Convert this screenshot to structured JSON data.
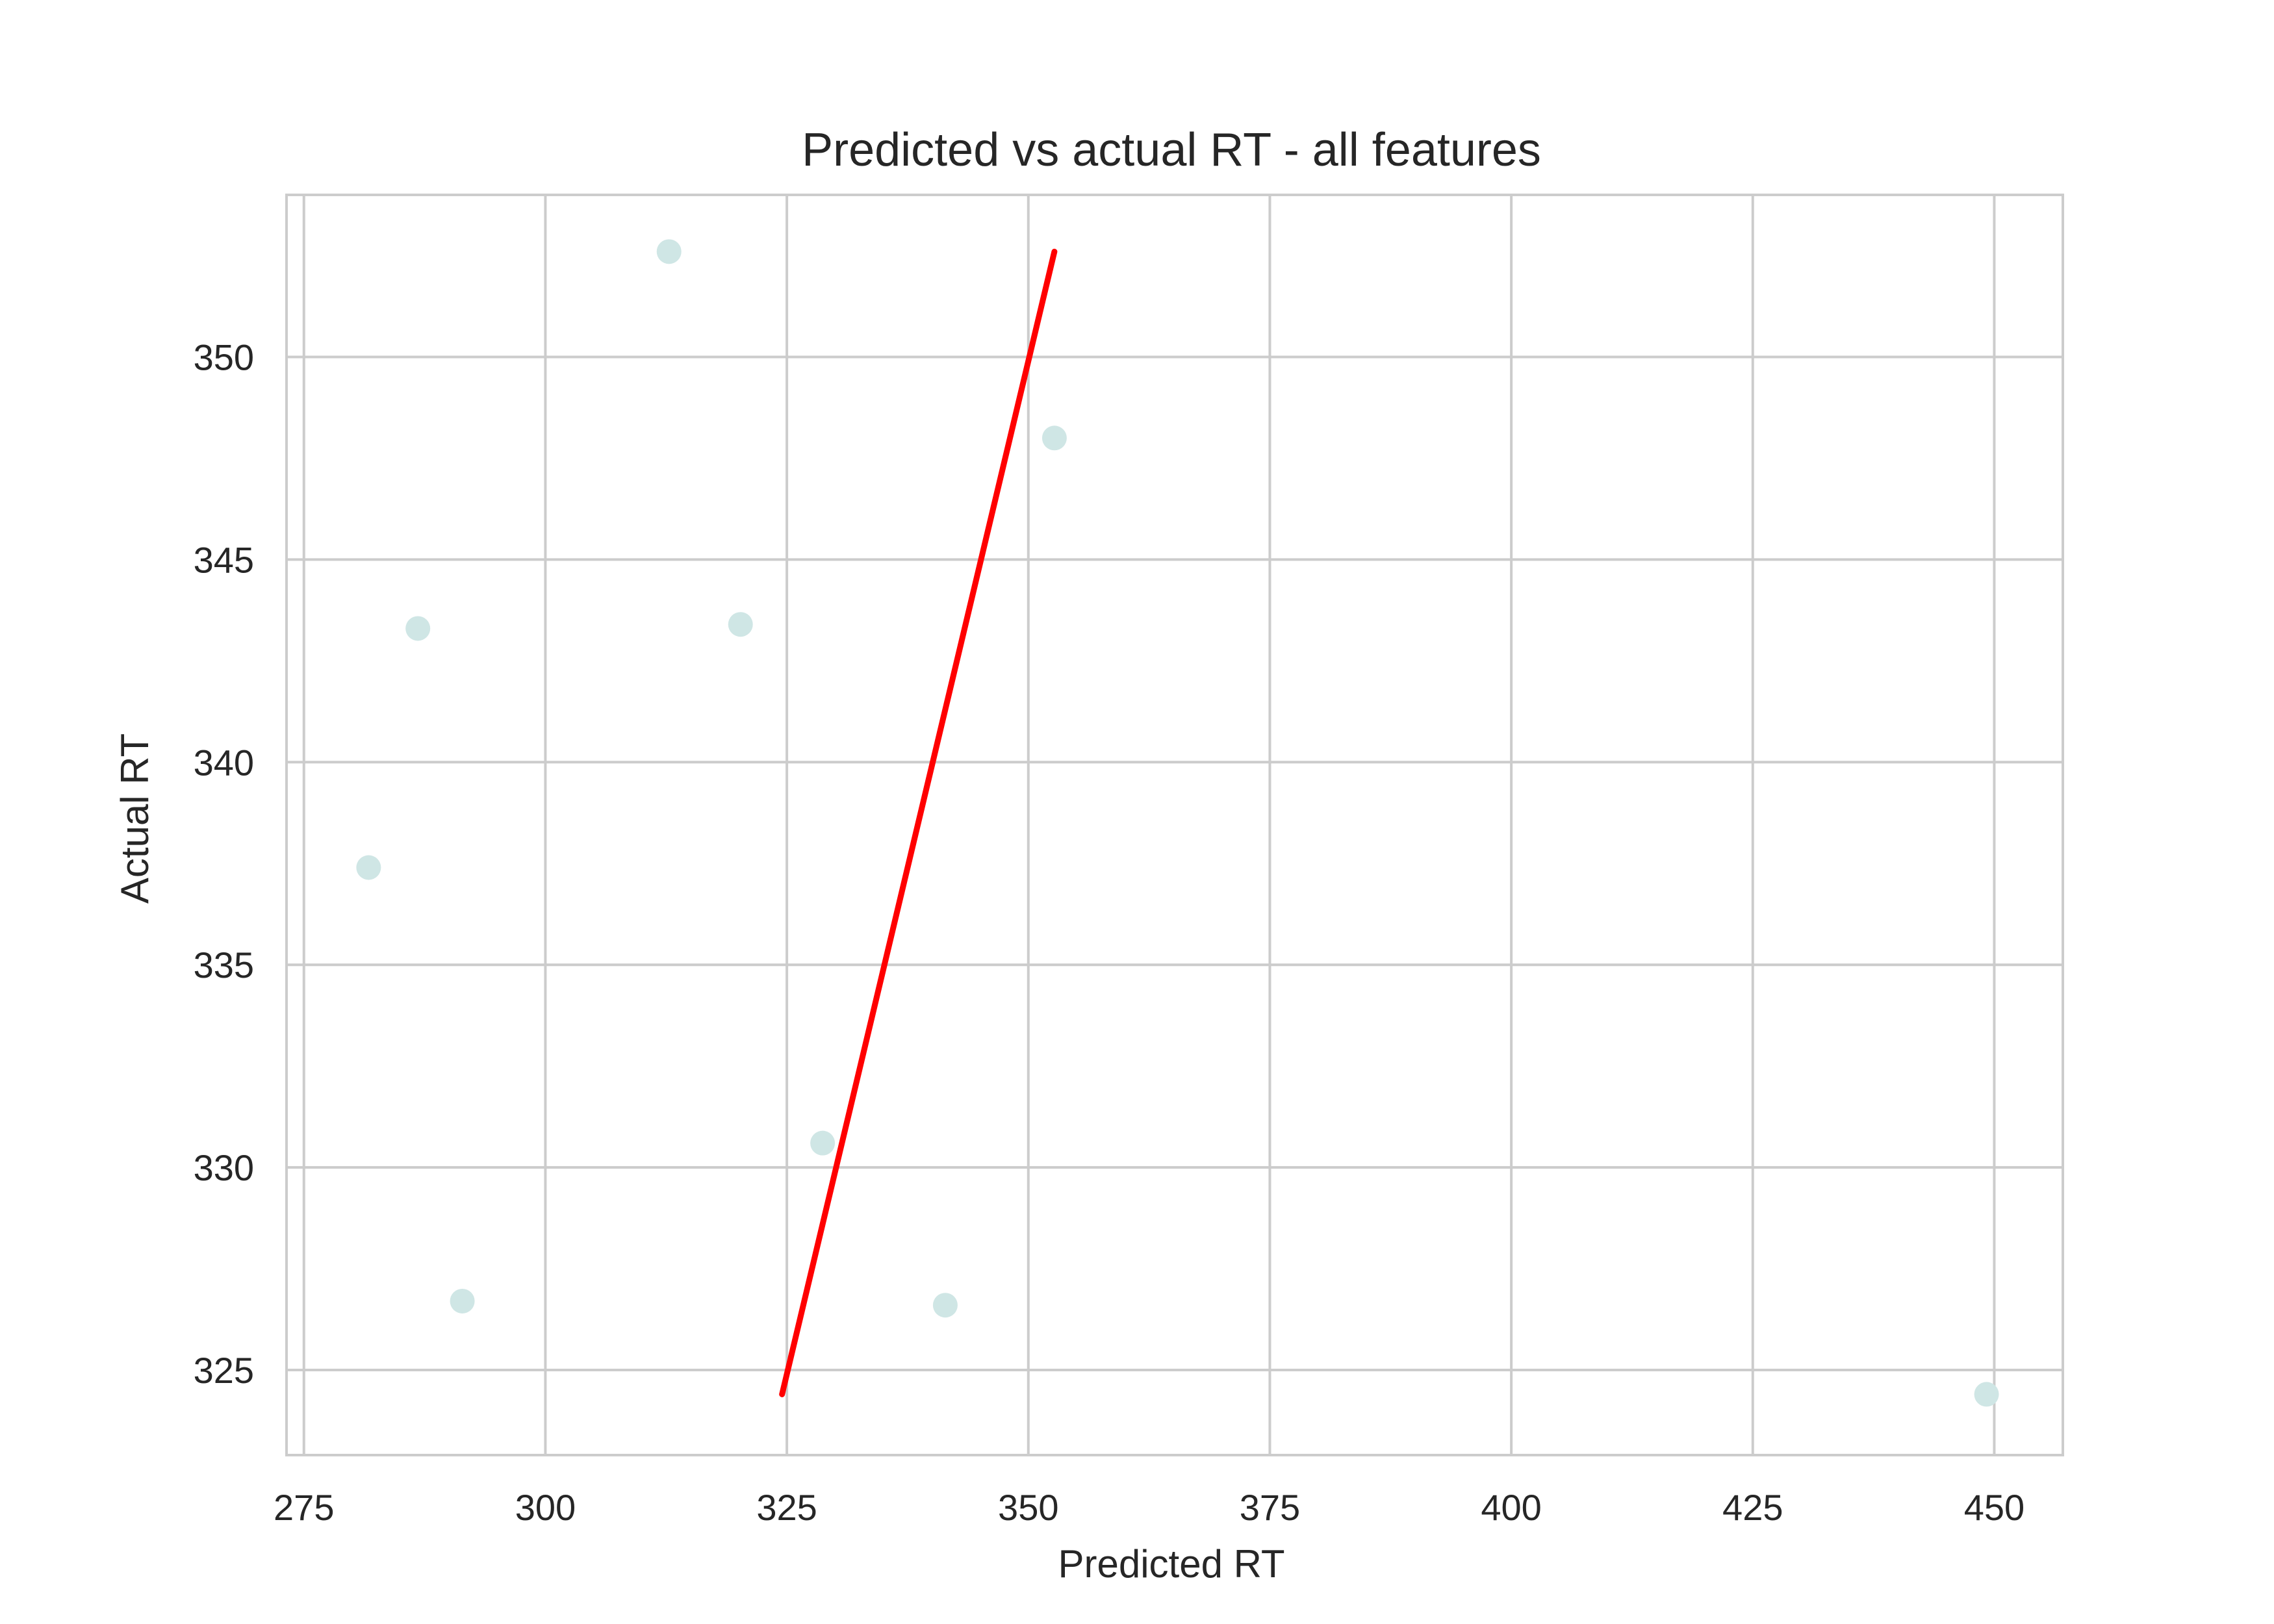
{
  "chart_data": {
    "type": "scatter",
    "title": "Predicted vs actual RT - all features",
    "xlabel": "Predicted RT",
    "ylabel": "Actual RT",
    "xlim": [
      273.2,
      457.1
    ],
    "ylim": [
      322.9,
      354.0
    ],
    "xticks": [
      275,
      300,
      325,
      350,
      375,
      400,
      425,
      450
    ],
    "yticks": [
      325,
      330,
      335,
      340,
      345,
      350
    ],
    "grid": true,
    "points": [
      {
        "x": 312.8,
        "y": 352.6
      },
      {
        "x": 352.7,
        "y": 348.0
      },
      {
        "x": 286.8,
        "y": 343.3
      },
      {
        "x": 320.2,
        "y": 343.4
      },
      {
        "x": 281.7,
        "y": 337.4
      },
      {
        "x": 328.7,
        "y": 330.6
      },
      {
        "x": 291.4,
        "y": 326.7
      },
      {
        "x": 341.4,
        "y": 326.6
      },
      {
        "x": 449.2,
        "y": 324.4
      }
    ],
    "line": {
      "x": [
        324.5,
        352.7
      ],
      "y": [
        324.4,
        352.6
      ]
    },
    "colors": {
      "points": "#cfe6e5",
      "line": "#ff0000",
      "grid": "#cccccc",
      "axes": "#cccccc",
      "text": "#262626"
    }
  }
}
